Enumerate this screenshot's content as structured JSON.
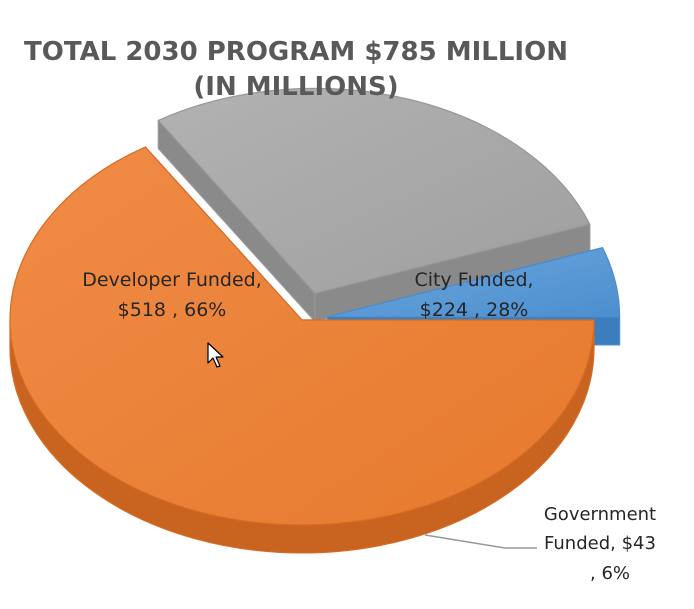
{
  "chart_data": {
    "type": "pie",
    "title": "TOTAL 2030 PROGRAM $785 MILLION",
    "subtitle": "(IN MILLIONS)",
    "slices": [
      {
        "name": "Developer Funded",
        "value": 518,
        "percent": "66%",
        "value_label": "$518",
        "color": "#ED7D31"
      },
      {
        "name": "City Funded",
        "value": 224,
        "percent": "28%",
        "value_label": "$224",
        "color": "#A5A5A5"
      },
      {
        "name": "Government Funded",
        "value": 43,
        "percent": "6%",
        "value_label": "$43",
        "color": "#5B9BD5"
      }
    ],
    "exploded": true,
    "three_d": true,
    "legend": "none"
  },
  "labels": {
    "developer_line1": "Developer Funded,",
    "developer_line2": "$518 , 66%",
    "city_line1": "City Funded,",
    "city_line2": "$224 , 28%",
    "government_line1": "Government",
    "government_line2": "Funded,  $43",
    "government_line3": ", 6%"
  }
}
